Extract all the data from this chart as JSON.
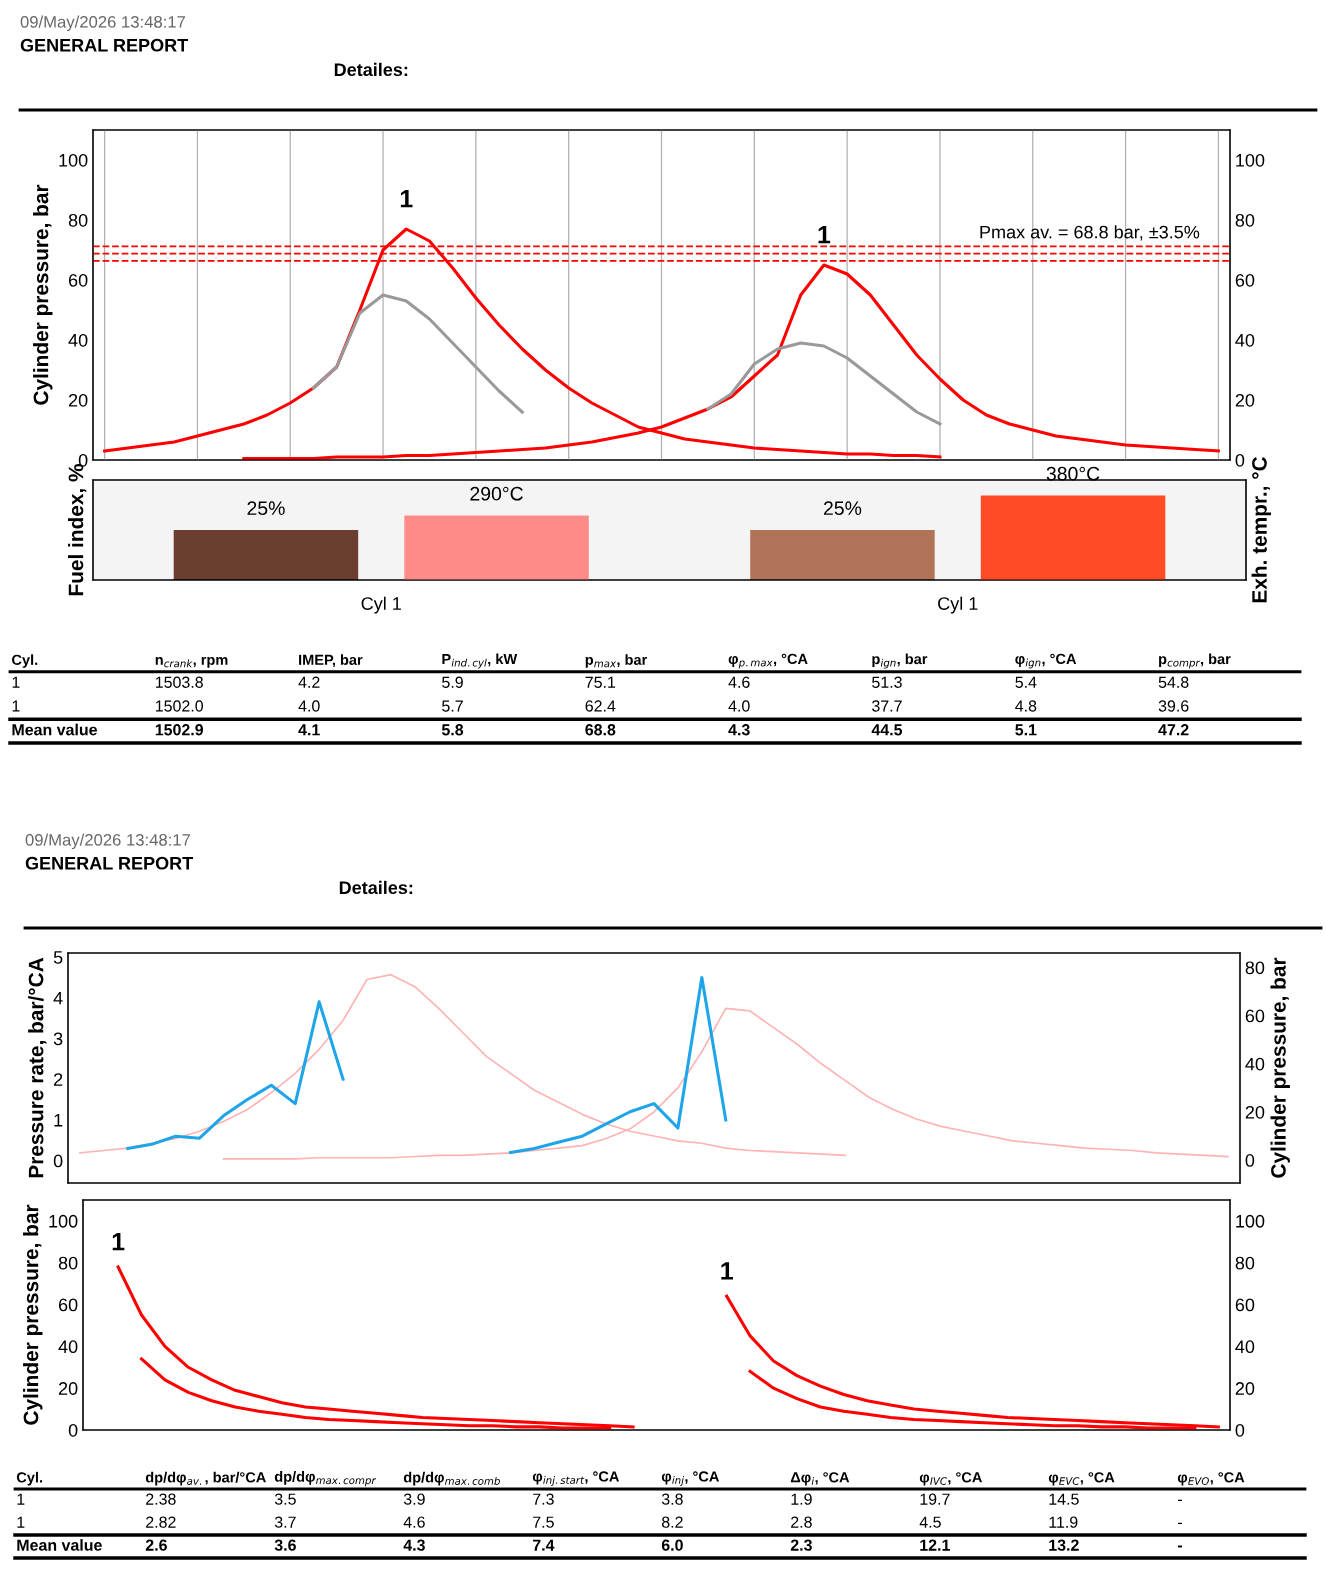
{
  "chart_data": [
    {
      "type": "other",
      "subtitle": "09/May/2026 13:48:17",
      "title": "GENERAL REPORT",
      "annotations": [
        "Detailes:"
      ]
    },
    {
      "type": "line",
      "ylabel": "Cylinder pressure, bar",
      "ylim": [
        0,
        110
      ],
      "yticks": [
        0,
        20,
        40,
        60,
        80,
        100
      ],
      "y2lim": [
        0,
        110
      ],
      "y2ticks": [
        0,
        20,
        40,
        60,
        80,
        100
      ],
      "grid": "x",
      "tick_labels": "y",
      "categories": [
        null,
        null,
        null,
        null,
        null,
        null,
        null,
        null,
        null,
        null,
        null,
        null,
        null,
        null,
        null,
        null,
        null,
        null,
        null,
        null,
        null,
        null,
        null,
        null,
        null,
        null,
        null,
        null,
        null,
        null,
        null,
        null,
        null,
        null,
        null,
        null,
        null,
        null,
        null,
        null,
        null,
        null,
        null,
        null,
        null,
        null,
        null,
        null,
        null
      ],
      "series": [
        {
          "color": "#ff0000",
          "values": [
            3,
            4,
            5,
            6,
            8,
            10,
            12,
            15,
            19,
            24,
            31,
            50,
            70,
            77,
            73,
            64,
            54,
            45,
            37,
            30,
            24,
            19,
            15,
            11,
            9,
            7,
            6,
            5,
            4,
            3.5,
            3,
            2.5,
            2,
            2,
            1.5,
            1.5,
            1,
            null,
            null,
            null,
            null,
            null,
            null,
            null,
            null,
            null,
            null,
            null,
            null
          ]
        },
        {
          "color": "#999999",
          "values": [
            null,
            null,
            null,
            null,
            null,
            null,
            null,
            null,
            null,
            24,
            31,
            49,
            55,
            53,
            47,
            39,
            31,
            23,
            16,
            null,
            null,
            null,
            null,
            null,
            null,
            null,
            null,
            null,
            null,
            null,
            null,
            null,
            null,
            null,
            null,
            null,
            null,
            null,
            null,
            null,
            null,
            null,
            null,
            null,
            null,
            null,
            null,
            null,
            null
          ]
        },
        {
          "color": "#ff0000",
          "values": [
            null,
            null,
            null,
            null,
            null,
            null,
            0.5,
            0.5,
            0.5,
            0.5,
            1,
            1,
            1,
            1.5,
            1.5,
            2,
            2.5,
            3,
            3.5,
            4,
            5,
            6,
            7.5,
            9,
            11,
            14,
            17,
            21,
            28,
            35,
            55,
            65,
            62,
            55,
            45,
            35,
            27,
            20,
            15,
            12,
            10,
            8,
            7,
            6,
            5,
            4.5,
            4,
            3.5,
            3
          ]
        },
        {
          "color": "#999999",
          "values": [
            null,
            null,
            null,
            null,
            null,
            null,
            null,
            null,
            null,
            null,
            null,
            null,
            null,
            null,
            null,
            null,
            null,
            null,
            null,
            null,
            null,
            null,
            null,
            null,
            null,
            null,
            17,
            22,
            32,
            37,
            39,
            38,
            34,
            28,
            22,
            16,
            12,
            null,
            null,
            null,
            null,
            null,
            null,
            null,
            null,
            null,
            null,
            null,
            null
          ]
        }
      ],
      "ref_lines": [
        {
          "axis": "y",
          "value": 66.4,
          "color": "#ff0000",
          "line_style": "dashed"
        },
        {
          "axis": "y",
          "value": 68.8,
          "color": "#ff0000",
          "line_style": "dashed",
          "label": "Pmax av. = 68.8 bar, ±3.5%"
        },
        {
          "axis": "y",
          "value": 71.2,
          "color": "#ff0000",
          "line_style": "dashed"
        }
      ],
      "annotations": [
        "1",
        "1"
      ]
    },
    {
      "type": "bar",
      "ylabel": "Fuel index, %",
      "y2label": "Exh. tempr., °C",
      "ylim": [
        0,
        50
      ],
      "y2lim": [
        0,
        450
      ],
      "tick_labels": "x",
      "categories": [
        "Cyl 1",
        "Cyl 1"
      ],
      "series": [
        {
          "colors": [
            "#6b3e30",
            "#b07358"
          ],
          "values": [
            25,
            25
          ],
          "value_labels": [
            "25%",
            "25%"
          ]
        },
        {
          "colors": [
            "#ff8a8a",
            "#ff4b26"
          ],
          "values": [
            290,
            380
          ],
          "value_labels": [
            "290°C",
            "380°C"
          ],
          "axis": "y2"
        }
      ]
    },
    {
      "type": "other",
      "categories": [
        "Cyl.",
        "n$_{crank}$, rpm",
        "IMEP, bar",
        "P$_{ind.cyl}$, kW",
        "p$_{max}$, bar",
        "φ$_{p.max}$, °CA",
        "p$_{ign}$, bar",
        "φ$_{ign}$, °CA",
        "p$_{compr}$, bar"
      ],
      "annotations": [
        "1",
        "1503.8",
        "4.2",
        "5.9",
        "75.1",
        "4.6",
        "51.3",
        "5.4",
        "54.8",
        "1",
        "1502.0",
        "4.0",
        "5.7",
        "62.4",
        "4.0",
        "37.7",
        "4.8",
        "39.6",
        "Mean value",
        "1502.9",
        "4.1",
        "5.8",
        "68.8",
        "4.3",
        "44.5",
        "5.1",
        "47.2"
      ]
    },
    {
      "type": "other",
      "subtitle": "09/May/2026 13:48:17",
      "title": "GENERAL REPORT",
      "annotations": [
        "Detailes:"
      ]
    },
    {
      "type": "line",
      "ylabel": "Pressure rate, bar/°CA",
      "y2label": "Cylinder pressure, bar",
      "ylim": [
        -0.55,
        5.1
      ],
      "yticks": [
        0,
        1,
        2,
        3,
        4,
        5
      ],
      "y2lim": [
        -9.5,
        86
      ],
      "y2ticks": [
        0,
        20,
        40,
        60,
        80
      ],
      "tick_labels": "y",
      "categories": [
        null,
        null,
        null,
        null,
        null,
        null,
        null,
        null,
        null,
        null,
        null,
        null,
        null,
        null,
        null,
        null,
        null,
        null,
        null,
        null,
        null,
        null,
        null,
        null,
        null,
        null,
        null,
        null,
        null,
        null,
        null,
        null,
        null,
        null,
        null,
        null,
        null,
        null,
        null,
        null,
        null,
        null,
        null,
        null,
        null,
        null,
        null,
        null,
        null
      ],
      "series": [
        {
          "color": "#ffb3b3",
          "axis": "y2",
          "values": [
            3,
            4,
            5,
            7,
            9,
            12,
            16,
            21,
            28,
            36,
            46,
            58,
            75,
            77,
            72,
            63,
            53,
            43,
            36,
            29,
            24,
            19,
            15,
            12,
            10,
            8,
            7,
            5,
            4,
            3.5,
            3,
            2.5,
            2,
            null,
            null,
            null,
            null,
            null,
            null,
            null,
            null,
            null,
            null,
            null,
            null,
            null,
            null,
            null,
            null
          ]
        },
        {
          "color": "#ffb3b3",
          "axis": "y2",
          "values": [
            null,
            null,
            null,
            null,
            null,
            null,
            0.5,
            0.5,
            0.5,
            0.5,
            1,
            1,
            1,
            1,
            1.5,
            2,
            2,
            2.5,
            3,
            4,
            5,
            6,
            9,
            13,
            20,
            30,
            45,
            63,
            62,
            55,
            48,
            40,
            33,
            26,
            21,
            17,
            14,
            12,
            10,
            8,
            7,
            6,
            5,
            4.5,
            4,
            3,
            2.5,
            2,
            1.5
          ]
        },
        {
          "color": "#1ea5e9",
          "values": [
            null,
            null,
            0.3,
            0.4,
            0.6,
            0.55,
            1.1,
            1.5,
            1.85,
            1.4,
            3.9,
            2.0,
            null,
            null,
            null,
            null,
            null,
            null,
            null,
            null,
            null,
            null,
            null,
            null,
            null,
            null,
            null,
            null,
            null,
            null,
            null,
            null,
            null,
            null,
            null,
            null,
            null,
            null,
            null,
            null,
            null,
            null,
            null,
            null,
            null,
            null,
            null,
            null,
            null
          ]
        },
        {
          "color": "#1ea5e9",
          "values": [
            null,
            null,
            null,
            null,
            null,
            null,
            null,
            null,
            null,
            null,
            null,
            null,
            null,
            null,
            null,
            null,
            null,
            null,
            0.2,
            0.3,
            0.45,
            0.6,
            0.9,
            1.2,
            1.4,
            0.8,
            4.5,
            1.0,
            null,
            null,
            null,
            null,
            null,
            null,
            null,
            null,
            null,
            null,
            null,
            null,
            null,
            null,
            null,
            null,
            null,
            null,
            null,
            null,
            null
          ]
        }
      ]
    },
    {
      "type": "line",
      "ylabel": "Cylinder pressure, bar",
      "ylim": [
        0,
        110
      ],
      "yticks": [
        0,
        20,
        40,
        60,
        80,
        100
      ],
      "y2lim": [
        0,
        110
      ],
      "y2ticks": [
        0,
        20,
        40,
        60,
        80,
        100
      ],
      "tick_labels": "y",
      "categories": [
        null,
        null,
        null,
        null,
        null,
        null,
        null,
        null,
        null,
        null,
        null,
        null,
        null,
        null,
        null,
        null,
        null,
        null,
        null,
        null,
        null,
        null,
        null,
        null,
        null,
        null,
        null,
        null,
        null,
        null,
        null,
        null,
        null,
        null,
        null,
        null,
        null,
        null,
        null,
        null,
        null,
        null,
        null,
        null,
        null,
        null,
        null,
        null,
        null
      ],
      "series": [
        {
          "color": "#ff0000",
          "values": [
            null,
            78,
            55,
            40,
            30,
            24,
            19,
            16,
            13,
            11,
            10,
            9,
            8,
            7,
            6,
            5.5,
            5,
            4.5,
            4,
            3.5,
            3,
            2.5,
            2,
            1.5,
            null,
            null,
            null,
            null,
            null,
            null,
            null,
            null,
            null,
            null,
            null,
            null,
            null,
            null,
            null,
            null,
            null,
            null,
            null,
            null,
            null,
            null,
            null,
            null,
            null
          ]
        },
        {
          "color": "#ff0000",
          "values": [
            null,
            null,
            34,
            24,
            18,
            14,
            11,
            9,
            7.5,
            6,
            5,
            4.5,
            4,
            3.5,
            3,
            2.5,
            2,
            2,
            1.5,
            1.5,
            1,
            1,
            1,
            null,
            null,
            null,
            null,
            null,
            null,
            null,
            null,
            null,
            null,
            null,
            null,
            null,
            null,
            null,
            null,
            null,
            null,
            null,
            null,
            null,
            null,
            null,
            null,
            null,
            null
          ]
        },
        {
          "color": "#ff0000",
          "values": [
            null,
            null,
            null,
            null,
            null,
            null,
            null,
            null,
            null,
            null,
            null,
            null,
            null,
            null,
            null,
            null,
            null,
            null,
            null,
            null,
            null,
            null,
            null,
            null,
            null,
            null,
            null,
            64,
            45,
            33,
            26,
            21,
            17,
            14,
            12,
            10,
            9,
            8,
            7,
            6,
            5.5,
            5,
            4.5,
            4,
            3.5,
            3,
            2.5,
            2,
            1.5
          ]
        },
        {
          "color": "#ff0000",
          "values": [
            null,
            null,
            null,
            null,
            null,
            null,
            null,
            null,
            null,
            null,
            null,
            null,
            null,
            null,
            null,
            null,
            null,
            null,
            null,
            null,
            null,
            null,
            null,
            null,
            null,
            null,
            null,
            null,
            28,
            20,
            15,
            11,
            9,
            7.5,
            6,
            5,
            4.5,
            4,
            3.5,
            3,
            2.5,
            2,
            2,
            1.5,
            1.5,
            1,
            1,
            1,
            null
          ]
        }
      ],
      "annotations": [
        "1",
        "1"
      ]
    },
    {
      "type": "other",
      "categories": [
        "Cyl.",
        "dp/dφ$_{av.}$, bar/°CA",
        "dp/dφ$_{max.compr}$",
        "dp/dφ$_{max.comb}$",
        "φ$_{inj.start}$, °CA",
        "φ$_{inj}$, °CA",
        "Δφ$_{i}$, °CA",
        "φ$_{IVC}$, °CA",
        "φ$_{EVC}$, °CA",
        "φ$_{EVO}$, °CA"
      ],
      "annotations": [
        "1",
        "2.38",
        "3.5",
        "3.9",
        "7.3",
        "3.8",
        "1.9",
        "19.7",
        "14.5",
        "-",
        "1",
        "2.82",
        "3.7",
        "4.6",
        "7.5",
        "8.2",
        "2.8",
        "4.5",
        "11.9",
        "-",
        "Mean value",
        "2.6",
        "3.6",
        "4.3",
        "7.4",
        "6.0",
        "2.3",
        "12.1",
        "13.2",
        "-"
      ]
    }
  ]
}
